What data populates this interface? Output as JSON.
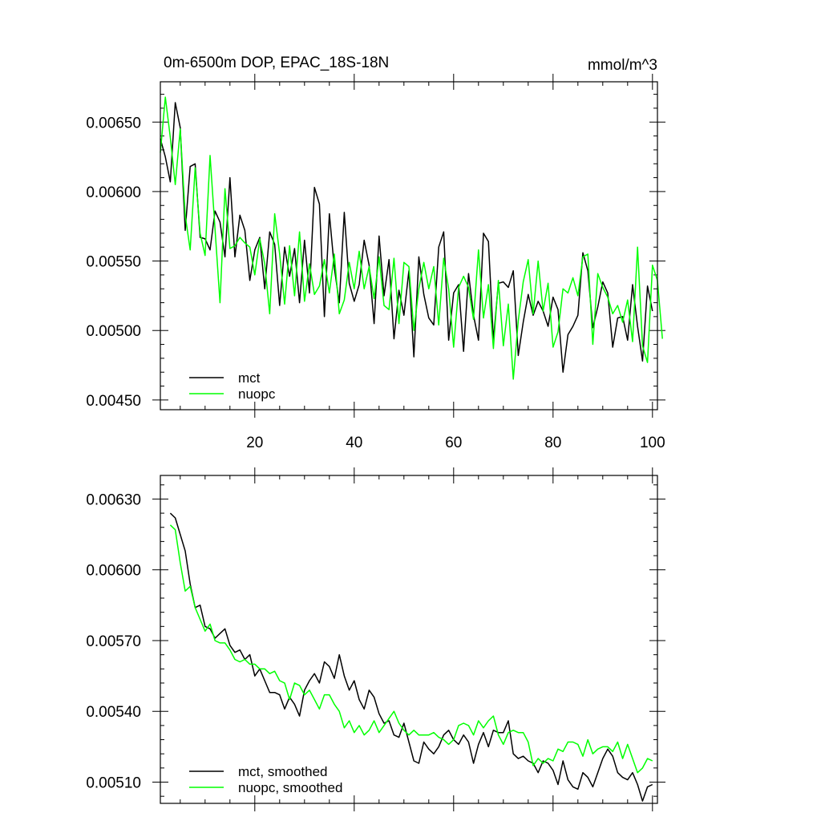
{
  "chart_data": [
    {
      "type": "line",
      "title": "0m-6500m DOP, EPAC_18S-18N",
      "units": "mmol/m^3",
      "xlabel": "",
      "ylabel": "",
      "xlim": [
        1,
        101
      ],
      "ylim": [
        0.00443,
        0.00679
      ],
      "xticks": [
        20,
        40,
        60,
        80,
        100
      ],
      "xtick_labels": [
        "20",
        "40",
        "60",
        "80",
        "100"
      ],
      "yticks": [
        0.0045,
        0.005,
        0.0055,
        0.006,
        0.0065
      ],
      "ytick_labels": [
        "0.00450",
        "0.00500",
        "0.00550",
        "0.00600",
        "0.00650"
      ],
      "legend_position": "bottom-left",
      "grid": false,
      "x_start": 1,
      "series": [
        {
          "name": "mct",
          "color": "#000000",
          "values": [
            0.00638,
            0.00625,
            0.00607,
            0.00664,
            0.00646,
            0.00572,
            0.00618,
            0.0062,
            0.00567,
            0.00566,
            0.00558,
            0.00586,
            0.00578,
            0.00553,
            0.0061,
            0.00553,
            0.00583,
            0.00572,
            0.00536,
            0.00558,
            0.00567,
            0.0053,
            0.00571,
            0.00562,
            0.00518,
            0.0056,
            0.00539,
            0.00559,
            0.0052,
            0.00565,
            0.00527,
            0.00603,
            0.00591,
            0.0051,
            0.00584,
            0.00545,
            0.0052,
            0.00585,
            0.00534,
            0.00521,
            0.00533,
            0.00565,
            0.00547,
            0.00505,
            0.00568,
            0.00525,
            0.00551,
            0.00494,
            0.00529,
            0.00511,
            0.00543,
            0.00481,
            0.00553,
            0.00526,
            0.00509,
            0.00504,
            0.0056,
            0.00571,
            0.00493,
            0.00527,
            0.00533,
            0.00485,
            0.00541,
            0.00511,
            0.00493,
            0.0057,
            0.00564,
            0.00493,
            0.00534,
            0.00535,
            0.00531,
            0.00543,
            0.00482,
            0.00506,
            0.00526,
            0.00511,
            0.00521,
            0.00514,
            0.00503,
            0.00524,
            0.00515,
            0.0047,
            0.00497,
            0.00503,
            0.00511,
            0.00556,
            0.00543,
            0.00502,
            0.00517,
            0.00535,
            0.00527,
            0.00488,
            0.00509,
            0.0051,
            0.00493,
            0.00533,
            0.00503,
            0.00478,
            0.00532,
            0.00514
          ]
        },
        {
          "name": "nuopc",
          "color": "#00ff00",
          "values": [
            0.00628,
            0.00668,
            0.00639,
            0.00605,
            0.00645,
            0.00583,
            0.00558,
            0.00617,
            0.0057,
            0.00554,
            0.00626,
            0.00573,
            0.0052,
            0.00602,
            0.00559,
            0.00561,
            0.00567,
            0.00563,
            0.0056,
            0.0054,
            0.00566,
            0.00548,
            0.00512,
            0.00584,
            0.00555,
            0.00519,
            0.00561,
            0.00525,
            0.00571,
            0.00521,
            0.00548,
            0.00526,
            0.00532,
            0.00551,
            0.00527,
            0.00555,
            0.00512,
            0.00522,
            0.00549,
            0.0053,
            0.00557,
            0.0053,
            0.00546,
            0.00523,
            0.00553,
            0.00518,
            0.00515,
            0.00552,
            0.00505,
            0.00549,
            0.00546,
            0.005,
            0.0053,
            0.00549,
            0.0053,
            0.00546,
            0.00504,
            0.00552,
            0.0053,
            0.00488,
            0.00531,
            0.00539,
            0.00531,
            0.00508,
            0.00558,
            0.00509,
            0.00533,
            0.00487,
            0.00536,
            0.00489,
            0.00519,
            0.00465,
            0.00507,
            0.00535,
            0.00551,
            0.00512,
            0.0055,
            0.00514,
            0.00534,
            0.00488,
            0.00499,
            0.0053,
            0.00527,
            0.00538,
            0.00525,
            0.00553,
            0.00555,
            0.0049,
            0.00541,
            0.00531,
            0.00524,
            0.00512,
            0.00518,
            0.00506,
            0.00522,
            0.00492,
            0.0056,
            0.00489,
            0.00477,
            0.00547,
            0.00536,
            0.00494
          ]
        }
      ]
    },
    {
      "type": "line",
      "title": "",
      "xlabel": "",
      "ylabel": "",
      "xlim": [
        1,
        101
      ],
      "ylim": [
        0.00501,
        0.0064
      ],
      "xticks": [
        20,
        40,
        60,
        80,
        100
      ],
      "yticks": [
        0.0051,
        0.0054,
        0.0057,
        0.006,
        0.0063
      ],
      "ytick_labels": [
        "0.00510",
        "0.00540",
        "0.00570",
        "0.00600",
        "0.00630"
      ],
      "legend_position": "bottom-left",
      "grid": false,
      "x_start": 3,
      "series": [
        {
          "name": "mct, smoothed",
          "color": "#000000",
          "values": [
            0.00624,
            0.00622,
            0.00615,
            0.00608,
            0.00594,
            0.00584,
            0.00585,
            0.00576,
            0.00575,
            0.00571,
            0.00573,
            0.00575,
            0.00568,
            0.00565,
            0.00566,
            0.00562,
            0.00564,
            0.00555,
            0.00558,
            0.00553,
            0.00548,
            0.00548,
            0.00547,
            0.00541,
            0.00546,
            0.00543,
            0.00538,
            0.00549,
            0.00553,
            0.00556,
            0.00552,
            0.00561,
            0.00559,
            0.00554,
            0.00564,
            0.00555,
            0.00549,
            0.00553,
            0.00545,
            0.00541,
            0.00549,
            0.00546,
            0.00539,
            0.00535,
            0.00536,
            0.0053,
            0.00529,
            0.00535,
            0.00527,
            0.00519,
            0.00518,
            0.00527,
            0.00524,
            0.00522,
            0.00525,
            0.0053,
            0.00532,
            0.00528,
            0.00526,
            0.0053,
            0.00527,
            0.00518,
            0.00526,
            0.00531,
            0.00525,
            0.00532,
            0.00531,
            0.00531,
            0.00536,
            0.00522,
            0.0052,
            0.00521,
            0.00519,
            0.00518,
            0.00514,
            0.00519,
            0.00518,
            0.00515,
            0.00509,
            0.00519,
            0.00511,
            0.00508,
            0.00507,
            0.00514,
            0.00512,
            0.00508,
            0.00514,
            0.0052,
            0.00524,
            0.00521,
            0.00514,
            0.00512,
            0.00511,
            0.00514,
            0.00509,
            0.00502,
            0.00508,
            0.00509
          ]
        },
        {
          "name": "nuopc, smoothed",
          "color": "#00ff00",
          "values": [
            0.00619,
            0.00617,
            0.00603,
            0.00591,
            0.00593,
            0.00584,
            0.00579,
            0.00574,
            0.00577,
            0.0057,
            0.00569,
            0.00569,
            0.00566,
            0.00562,
            0.00561,
            0.00562,
            0.0056,
            0.0056,
            0.00558,
            0.00558,
            0.00556,
            0.00557,
            0.00553,
            0.00552,
            0.00545,
            0.00552,
            0.00551,
            0.00547,
            0.00549,
            0.00545,
            0.00541,
            0.00547,
            0.00547,
            0.00543,
            0.0054,
            0.00533,
            0.00536,
            0.00531,
            0.00534,
            0.0053,
            0.00532,
            0.00536,
            0.00531,
            0.00534,
            0.00537,
            0.0054,
            0.00535,
            0.00532,
            0.0053,
            0.00532,
            0.0053,
            0.0053,
            0.0053,
            0.00531,
            0.00529,
            0.00528,
            0.00526,
            0.00528,
            0.00534,
            0.00535,
            0.00534,
            0.0053,
            0.00536,
            0.00533,
            0.00536,
            0.00538,
            0.0053,
            0.00526,
            0.00531,
            0.00532,
            0.00531,
            0.00531,
            0.00527,
            0.00517,
            0.0052,
            0.00518,
            0.0052,
            0.00519,
            0.00524,
            0.00523,
            0.00527,
            0.00527,
            0.00526,
            0.00521,
            0.00528,
            0.00522,
            0.00524,
            0.00525,
            0.00525,
            0.00523,
            0.00527,
            0.0052,
            0.00526,
            0.0052,
            0.00514,
            0.00516,
            0.0052,
            0.00519
          ]
        }
      ]
    }
  ]
}
